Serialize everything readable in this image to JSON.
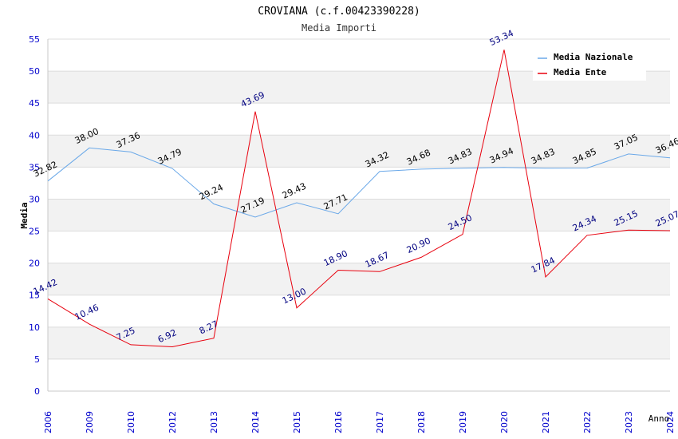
{
  "chart_data": {
    "type": "line",
    "title": "CROVIANA (c.f.00423390228)",
    "subtitle": "Media Importi",
    "xlabel": "Anno",
    "ylabel": "Media",
    "categories": [
      "2006",
      "2009",
      "2010",
      "2012",
      "2013",
      "2014",
      "2015",
      "2016",
      "2017",
      "2018",
      "2019",
      "2020",
      "2021",
      "2022",
      "2023",
      "2024"
    ],
    "ylim": [
      0,
      55
    ],
    "yticks": [
      0,
      5,
      10,
      15,
      20,
      25,
      30,
      35,
      40,
      45,
      50,
      55
    ],
    "grid": "horizontal alternating bands",
    "legend_position": "top-right",
    "series": [
      {
        "name": "Media Nazionale",
        "color": "#6aa8e8",
        "label_color": "#000000",
        "values": [
          32.82,
          38.0,
          37.36,
          34.79,
          29.24,
          27.19,
          29.43,
          27.71,
          34.32,
          34.68,
          34.83,
          34.94,
          34.83,
          34.85,
          37.05,
          36.46
        ],
        "labels": [
          "32.82",
          "38.00",
          "37.36",
          "34.79",
          "29.24",
          "27.19",
          "29.43",
          "27.71",
          "34.32",
          "34.68",
          "34.83",
          "34.94",
          "34.83",
          "34.85",
          "37.05",
          "36.46"
        ]
      },
      {
        "name": "Media Ente",
        "color": "#e8000d",
        "label_color": "#000080",
        "values": [
          14.42,
          10.46,
          7.25,
          6.92,
          8.27,
          43.69,
          13.0,
          18.9,
          18.67,
          20.9,
          24.5,
          53.34,
          17.84,
          24.34,
          25.15,
          25.07
        ],
        "labels": [
          "14.42",
          "10.46",
          "7.25",
          "6.92",
          "8.27",
          "43.69",
          "13.00",
          "18.90",
          "18.67",
          "20.90",
          "24.50",
          "53.34",
          "17.84",
          "24.34",
          "25.15",
          "25.07"
        ]
      }
    ]
  }
}
